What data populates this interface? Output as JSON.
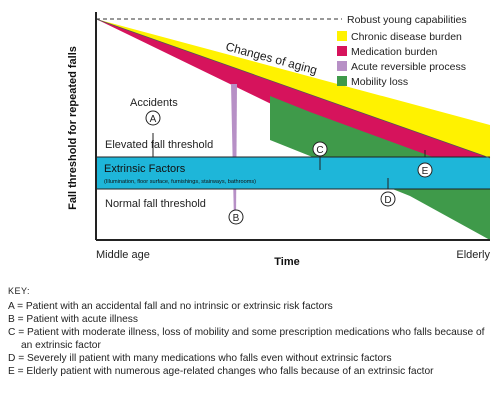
{
  "diagram": {
    "y_axis_label": "Fall threshold for repeated falls",
    "x_axis_label": "Time",
    "x_start_label": "Middle age",
    "x_end_label": "Elderly",
    "robust_label": "Robust young capabilities",
    "changes_label": "Changes of aging",
    "legend": [
      {
        "label": "Chronic disease burden",
        "color": "#fff200"
      },
      {
        "label": "Medication burden",
        "color": "#d6135c"
      },
      {
        "label": "Acute reversible process",
        "color": "#b790c6"
      },
      {
        "label": "Mobility loss",
        "color": "#3f9a4a"
      }
    ],
    "accidents_label": "Accidents",
    "elevated_label": "Elevated fall threshold",
    "extrinsic_title": "Extrinsic Factors",
    "extrinsic_sub": "(Illumination, floor surface, furnishings, stairways, bathrooms)",
    "normal_label": "Normal fall threshold",
    "band_color": "#1eb6d9",
    "markers": [
      "A",
      "B",
      "C",
      "D",
      "E"
    ]
  },
  "key": {
    "heading": "KEY:",
    "items": [
      "A = Patient with an accidental fall and no intrinsic or extrinsic risk factors",
      "B = Patient with acute illness",
      "C = Patient with moderate illness, loss of mobility and some prescription medications who falls because of an extrinsic factor",
      "D = Severely ill patient with many medications who falls even without extrinsic factors",
      "E = Elderly patient with numerous age-related changes who falls because of an extrinsic factor"
    ]
  }
}
